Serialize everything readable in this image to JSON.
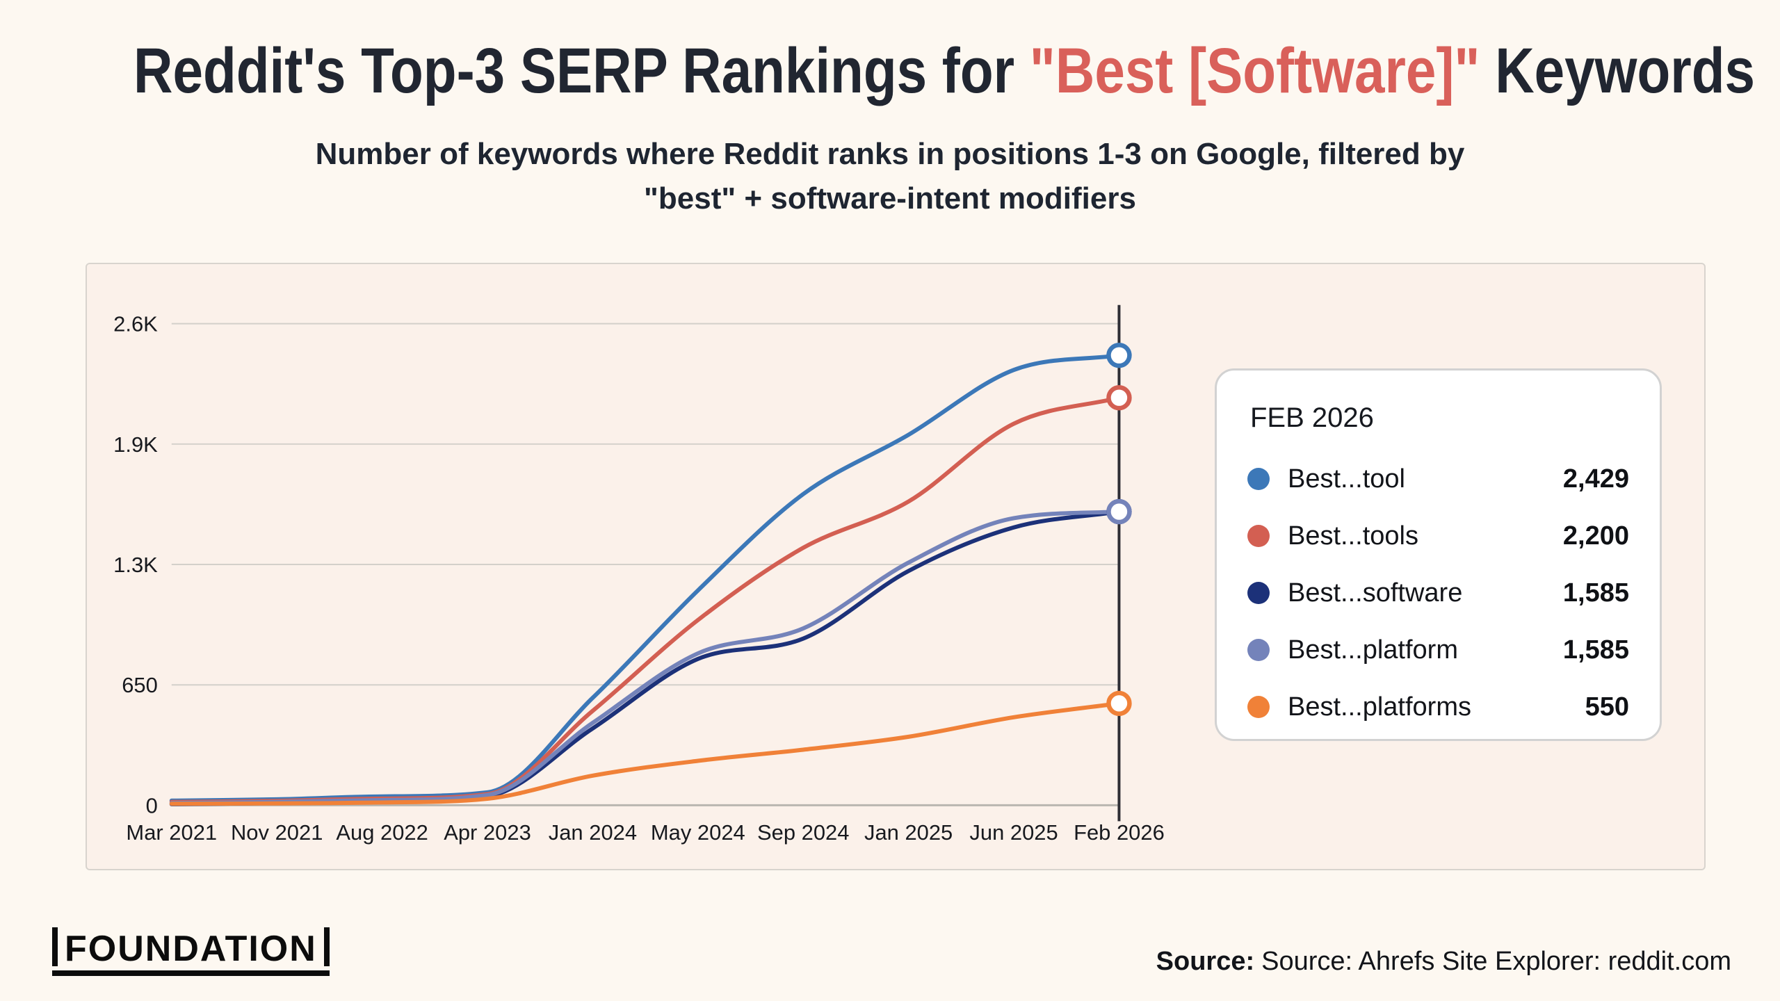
{
  "page": {
    "background": "#fdf8f1",
    "panel_background": "#fbf1ea"
  },
  "header": {
    "title_prefix": "Reddit's Top-3 SERP Rankings for ",
    "title_highlight": "\"Best [Software]\"",
    "title_suffix": " Keywords",
    "highlight_color": "#d9605a",
    "subtitle_line1": "Number of keywords where Reddit ranks in positions 1-3 on Google, filtered by",
    "subtitle_line2": "\"best\" + software-intent modifiers"
  },
  "chart_data": {
    "type": "line",
    "title": "Reddit's Top-3 SERP Rankings for \"Best [Software]\" Keywords",
    "xlabel": "",
    "ylabel": "",
    "ylim": [
      0,
      2600
    ],
    "grid": "horizontal",
    "categories": [
      "Mar 2021",
      "Nov 2021",
      "Aug 2022",
      "Apr 2023",
      "Jan 2024",
      "May 2024",
      "Sep 2024",
      "Jan 2025",
      "Jun 2025",
      "Feb 2026"
    ],
    "y_ticks": [
      {
        "label": "0",
        "value": 0
      },
      {
        "label": "650",
        "value": 650
      },
      {
        "label": "1.3K",
        "value": 1300
      },
      {
        "label": "1.9K",
        "value": 1950
      },
      {
        "label": "2.6K",
        "value": 2600
      }
    ],
    "series": [
      {
        "name": "Best...tool",
        "color": "#3c78b8",
        "end_label": "2,429",
        "values": [
          25,
          32,
          48,
          70,
          580,
          1160,
          1680,
          2000,
          2350,
          2429
        ]
      },
      {
        "name": "Best...tools",
        "color": "#d35f52",
        "end_label": "2,200",
        "values": [
          18,
          24,
          36,
          60,
          510,
          1000,
          1390,
          1640,
          2060,
          2200
        ]
      },
      {
        "name": "Best...software",
        "color": "#1c3179",
        "end_label": "1,585",
        "values": [
          6,
          12,
          22,
          48,
          415,
          790,
          900,
          1265,
          1500,
          1585
        ]
      },
      {
        "name": "Best...platform",
        "color": "#7483ba",
        "end_label": "1,585",
        "values": [
          12,
          18,
          28,
          55,
          445,
          820,
          955,
          1310,
          1550,
          1585
        ]
      },
      {
        "name": "Best...platforms",
        "color": "#f08138",
        "end_label": "550",
        "values": [
          8,
          10,
          15,
          35,
          160,
          240,
          300,
          370,
          475,
          550
        ]
      }
    ],
    "legend": {
      "title": "FEB 2026",
      "position": "right"
    },
    "end_line_at": "Feb 2026",
    "colors": {
      "gridline": "#d3d0ca",
      "baseline": "#b9b6b0",
      "end_line": "#2e2e35"
    }
  },
  "footer": {
    "logo_text": "FOUNDATION",
    "source_label": "Source:",
    "source_text": "Source: Ahrefs Site Explorer: reddit.com"
  }
}
